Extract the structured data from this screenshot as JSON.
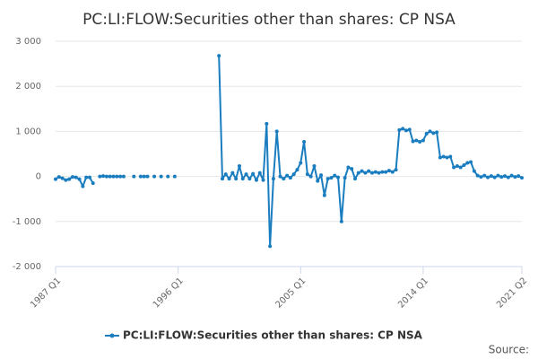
{
  "chart_data": {
    "type": "line",
    "title": "PC:LI:FLOW:Securities other than shares: CP NSA",
    "source_label": "Source:",
    "categories": [
      "1987 Q1",
      null,
      null,
      null,
      null,
      null,
      null,
      null,
      null,
      null,
      null,
      null,
      null,
      null,
      null,
      null,
      null,
      null,
      null,
      null,
      null,
      null,
      null,
      null,
      null,
      null,
      null,
      null,
      null,
      null,
      null,
      null,
      null,
      null,
      null,
      null,
      "1996 Q1",
      null,
      null,
      null,
      null,
      null,
      null,
      null,
      null,
      null,
      null,
      null,
      null,
      null,
      null,
      null,
      null,
      null,
      null,
      null,
      null,
      null,
      null,
      null,
      null,
      null,
      null,
      null,
      null,
      null,
      null,
      null,
      null,
      null,
      null,
      null,
      "2005 Q1",
      null,
      null,
      null,
      null,
      null,
      null,
      null,
      null,
      null,
      null,
      null,
      null,
      null,
      null,
      null,
      null,
      null,
      null,
      null,
      null,
      null,
      null,
      null,
      null,
      null,
      null,
      null,
      null,
      null,
      null,
      null,
      null,
      null,
      null,
      null,
      "2014 Q1",
      null,
      null,
      null,
      null,
      null,
      null,
      null,
      null,
      null,
      null,
      null,
      null,
      null,
      null,
      null,
      null,
      null,
      null,
      null,
      null,
      null,
      null,
      null,
      null,
      null,
      null,
      null,
      null,
      "2021 Q2"
    ],
    "series": [
      {
        "name": "PC:LI:FLOW:Securities other than shares: CP NSA",
        "color": "#1a7dc0",
        "values": [
          -60,
          -10,
          -40,
          -80,
          -60,
          -10,
          -20,
          -60,
          -220,
          -20,
          -20,
          -150,
          null,
          0,
          10,
          0,
          0,
          0,
          0,
          0,
          0,
          null,
          null,
          0,
          null,
          0,
          0,
          0,
          null,
          0,
          null,
          0,
          null,
          0,
          null,
          0,
          null,
          null,
          null,
          null,
          null,
          null,
          null,
          null,
          null,
          null,
          null,
          null,
          2680,
          -50,
          50,
          -50,
          80,
          -50,
          230,
          -50,
          50,
          -50,
          60,
          -80,
          80,
          -80,
          1170,
          -1550,
          -50,
          1000,
          0,
          -50,
          20,
          -30,
          50,
          150,
          300,
          770,
          50,
          0,
          230,
          -100,
          30,
          -420,
          -50,
          -30,
          20,
          -20,
          -1000,
          -30,
          200,
          170,
          -50,
          80,
          120,
          80,
          120,
          80,
          100,
          80,
          100,
          100,
          130,
          100,
          150,
          1030,
          1060,
          1020,
          1040,
          780,
          800,
          770,
          800,
          950,
          1000,
          960,
          980,
          420,
          440,
          420,
          440,
          200,
          230,
          200,
          250,
          300,
          320,
          120,
          20,
          -10,
          20,
          -20,
          10,
          -20,
          20,
          -10,
          10,
          -20,
          20,
          -10,
          10,
          -30
        ]
      }
    ],
    "ylim": [
      -2000,
      3000
    ],
    "yticks": [
      {
        "value": -2000,
        "label": "-2 000"
      },
      {
        "value": -1000,
        "label": "-1 000"
      },
      0,
      {
        "value": 1000,
        "label": "1 000"
      },
      {
        "value": 2000,
        "label": "2 000"
      },
      {
        "value": 3000,
        "label": "3 000"
      }
    ],
    "grid": true
  }
}
